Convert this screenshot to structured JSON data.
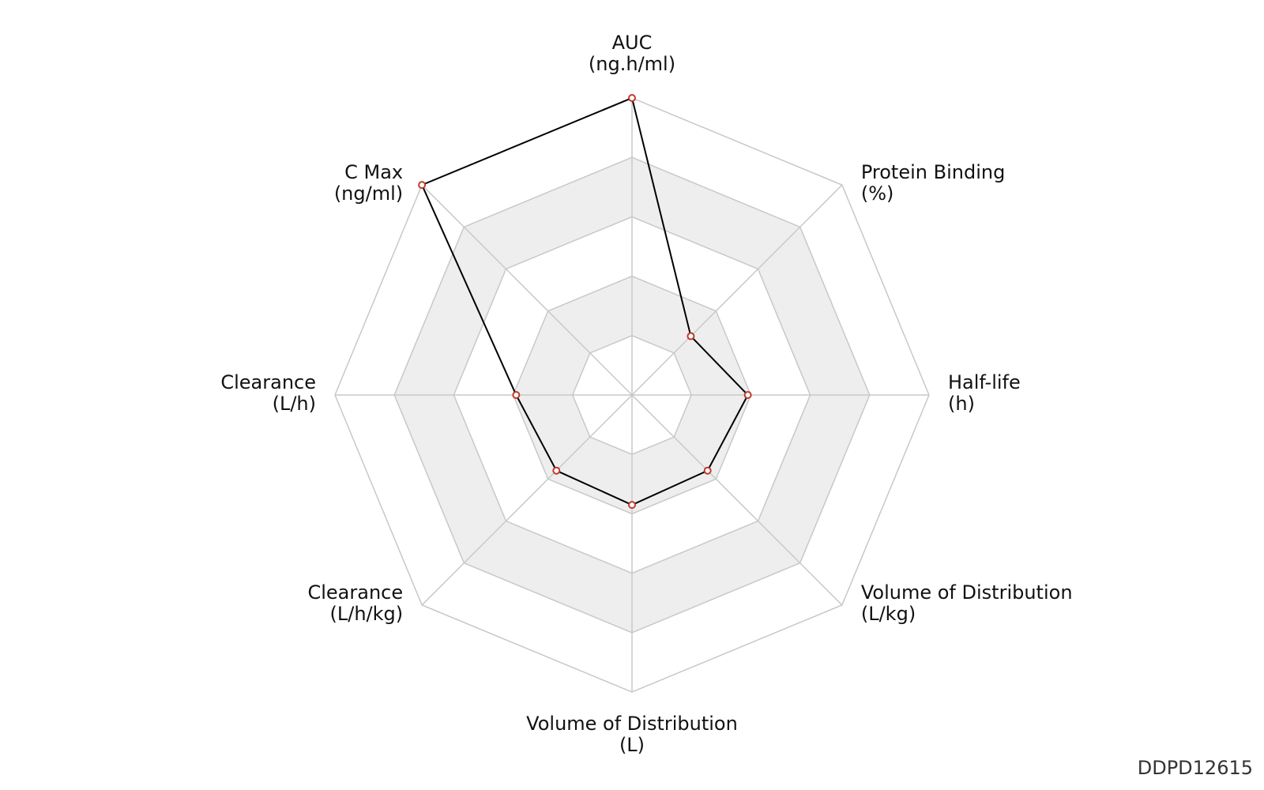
{
  "chart_data": {
    "type": "radar",
    "title": "",
    "axes": [
      {
        "name": "AUC",
        "unit": "(ng.h/ml)"
      },
      {
        "name": "Protein Binding",
        "unit": "(%)"
      },
      {
        "name": "Half-life",
        "unit": "(h)"
      },
      {
        "name": "Volume of Distribution",
        "unit": "(L/kg)"
      },
      {
        "name": "Volume of Distribution",
        "unit": "(L)"
      },
      {
        "name": "Clearance",
        "unit": "(L/h/kg)"
      },
      {
        "name": "Clearance",
        "unit": "(L/h)"
      },
      {
        "name": "C Max",
        "unit": "(ng/ml)"
      }
    ],
    "rings": 5,
    "range": [
      0,
      1
    ],
    "grid": true,
    "series": [
      {
        "values": [
          1.0,
          0.28,
          0.39,
          0.36,
          0.37,
          0.36,
          0.39,
          1.0
        ]
      }
    ],
    "colors": {
      "grid_line": "#c8c8c8",
      "band_fill": "#eeeeee",
      "series_line": "#000000",
      "marker_stroke": "#c0392b",
      "marker_fill": "#ffffff"
    }
  },
  "watermark": "DDPD12615"
}
